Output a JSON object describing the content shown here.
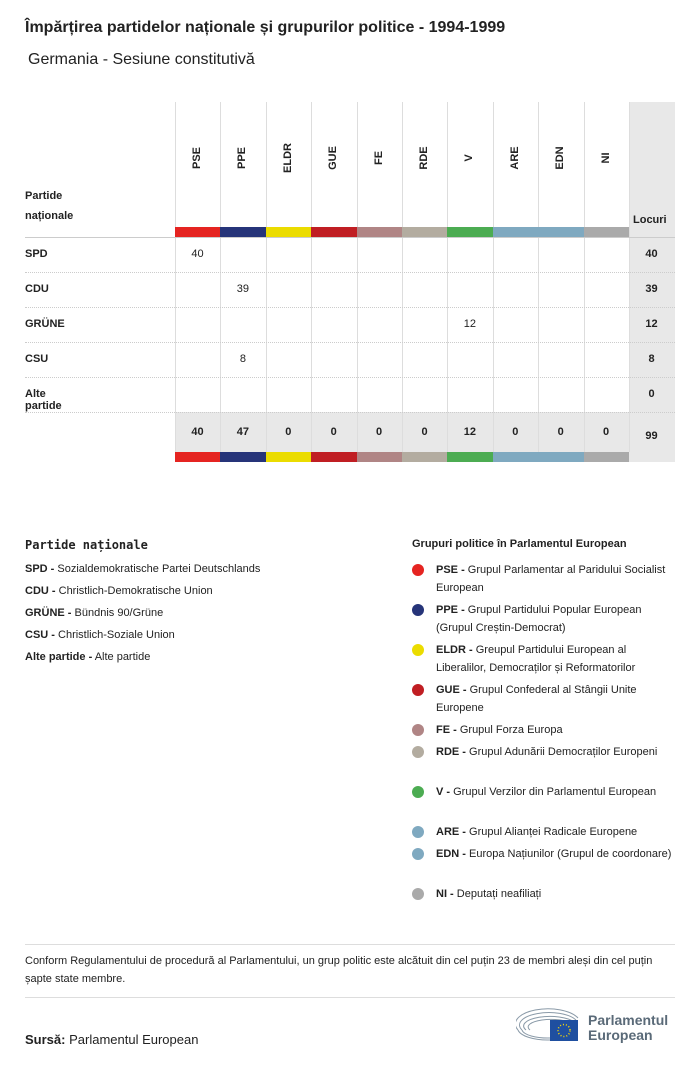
{
  "title": "Împărțirea partidelor naționale și grupurilor politice - 1994-1999",
  "subtitle": "Germania - Sesiune constitutivă",
  "chart_data": {
    "type": "table",
    "row_header": "Partide naționale",
    "total_header": "Locuri",
    "columns": [
      "PSE",
      "PPE",
      "ELDR",
      "GUE",
      "FE",
      "RDE",
      "V",
      "ARE",
      "EDN",
      "NI"
    ],
    "column_colors": [
      "#e52421",
      "#263479",
      "#ebdc00",
      "#c01e23",
      "#b08585",
      "#b3aca0",
      "#4cac52",
      "#7fa9c0",
      "#7fa9c0",
      "#aaaaaa"
    ],
    "rows": [
      {
        "party": "SPD",
        "values": [
          40,
          null,
          null,
          null,
          null,
          null,
          null,
          null,
          null,
          null
        ],
        "total": "40"
      },
      {
        "party": "CDU",
        "values": [
          null,
          39,
          null,
          null,
          null,
          null,
          null,
          null,
          null,
          null
        ],
        "total": "39"
      },
      {
        "party": "GRÜNE",
        "values": [
          null,
          null,
          null,
          null,
          null,
          null,
          12,
          null,
          null,
          null
        ],
        "total": "12"
      },
      {
        "party": "CSU",
        "values": [
          null,
          8,
          null,
          null,
          null,
          null,
          null,
          null,
          null,
          null
        ],
        "total": "8"
      },
      {
        "party": "Alte partide",
        "values": [
          null,
          null,
          null,
          null,
          null,
          null,
          null,
          null,
          null,
          null
        ],
        "total": "0"
      }
    ],
    "totals": [
      "40",
      "47",
      "0",
      "0",
      "0",
      "0",
      "12",
      "0",
      "0",
      "0"
    ],
    "grand_total": "99"
  },
  "national_legend": {
    "heading": "Partide naționale",
    "items": [
      {
        "abbr": "SPD -",
        "name": "Sozialdemokratische Partei Deutschlands"
      },
      {
        "abbr": "CDU -",
        "name": "Christlich-Demokratische Union"
      },
      {
        "abbr": "GRÜNE -",
        "name": "Bündnis 90/Grüne"
      },
      {
        "abbr": "CSU -",
        "name": "Christlich-Soziale Union"
      },
      {
        "abbr": "Alte partide -",
        "name": "Alte partide"
      }
    ]
  },
  "group_legend": {
    "heading": "Grupuri politice în Parlamentul European",
    "items": [
      {
        "abbr": "PSE -",
        "name": "Grupul Parlamentar al Paridului Socialist European",
        "color": "#e52421"
      },
      {
        "abbr": "PPE -",
        "name": "Grupul Partidului Popular European (Grupul Creștin-Democrat)",
        "color": "#263479"
      },
      {
        "abbr": "ELDR -",
        "name": "Greupul Partidului European al Liberalilor, Democraților și Reformatorilor",
        "color": "#ebdc00"
      },
      {
        "abbr": "GUE -",
        "name": "Grupul Confederal al Stângii Unite Europene",
        "color": "#c01e23"
      },
      {
        "abbr": "FE -",
        "name": "Grupul Forza Europa",
        "color": "#b08585"
      },
      {
        "abbr": "RDE -",
        "name": "Grupul Adunării Democraților Europeni",
        "color": "#b3aca0"
      },
      {
        "abbr": "V -",
        "name": "Grupul Verzilor din Parlamentul European",
        "color": "#4cac52"
      },
      {
        "abbr": "ARE -",
        "name": "Grupul Alianței Radicale Europene",
        "color": "#7fa9c0"
      },
      {
        "abbr": "EDN -",
        "name": "Europa Națiunilor (Grupul de coordonare)",
        "color": "#7fa9c0"
      },
      {
        "abbr": "NI -",
        "name": "Deputați neafiliați",
        "color": "#aaaaaa"
      }
    ]
  },
  "note": "Conform Regulamentului de procedură al Parlamentului, un grup politic este alcătuit din cel puțin 23 de membri aleși din cel puțin șapte state membre.",
  "source": {
    "label": "Sursă:",
    "value": "Parlamentul European"
  },
  "logo": {
    "line1": "Parlamentul",
    "line2": "European"
  }
}
